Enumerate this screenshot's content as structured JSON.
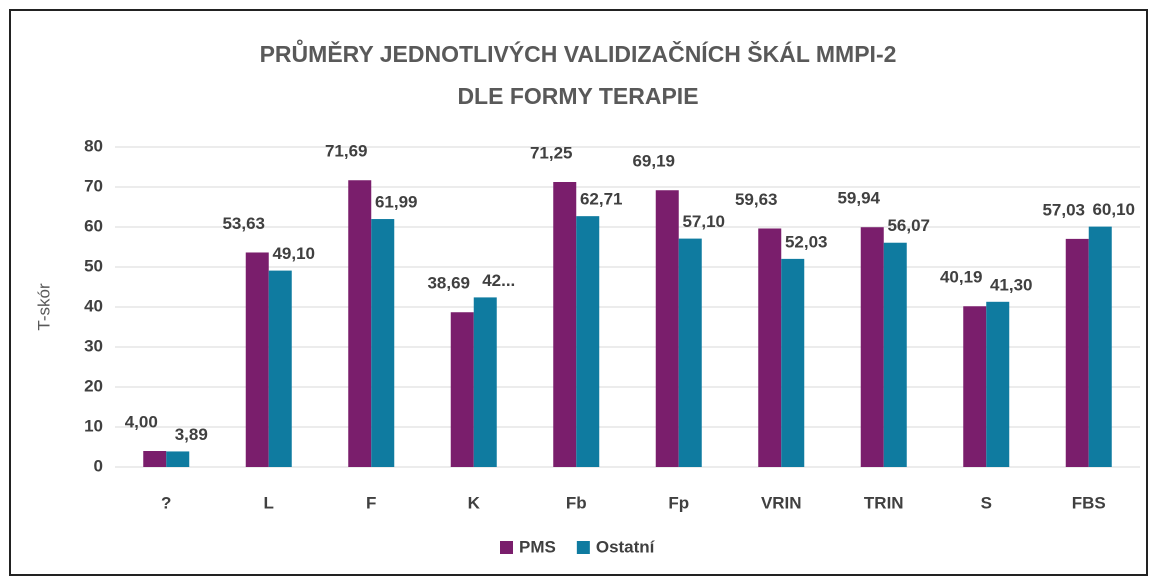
{
  "chart_data": {
    "type": "bar",
    "title": [
      "PRŮMĚRY JEDNOTLIVÝCH VALIDIZAČNÍCH ŠKÁL MMPI-2",
      "DLE FORMY TERAPIE"
    ],
    "y_label": "T-skór",
    "categories": [
      "?",
      "L",
      "F",
      "K",
      "Fb",
      "Fp",
      "VRIN",
      "TRIN",
      "S",
      "FBS"
    ],
    "series": [
      {
        "name": "PMS",
        "color": "#7a1e6c",
        "values": [
          4.0,
          53.63,
          71.69,
          38.69,
          71.25,
          69.19,
          59.63,
          59.94,
          40.19,
          57.03
        ],
        "value_labels": [
          "4,00",
          "53,63",
          "71,69",
          "38,69",
          "71,25",
          "69,19",
          "59,63",
          "59,94",
          "40,19",
          "57,03"
        ]
      },
      {
        "name": "Ostatní",
        "color": "#0f7ba0",
        "values": [
          3.89,
          49.1,
          61.99,
          42.4,
          62.71,
          57.1,
          52.03,
          56.07,
          41.3,
          60.1
        ],
        "value_labels": [
          "3,89",
          "49,10",
          "61,99",
          "42...",
          "62,71",
          "57,10",
          "52,03",
          "56,07",
          "41,30",
          "60,10"
        ]
      }
    ],
    "ylim": [
      0,
      80
    ],
    "yticks": [
      0,
      10,
      20,
      30,
      40,
      50,
      60,
      70,
      80
    ],
    "grid": true,
    "legend": "bottom"
  }
}
